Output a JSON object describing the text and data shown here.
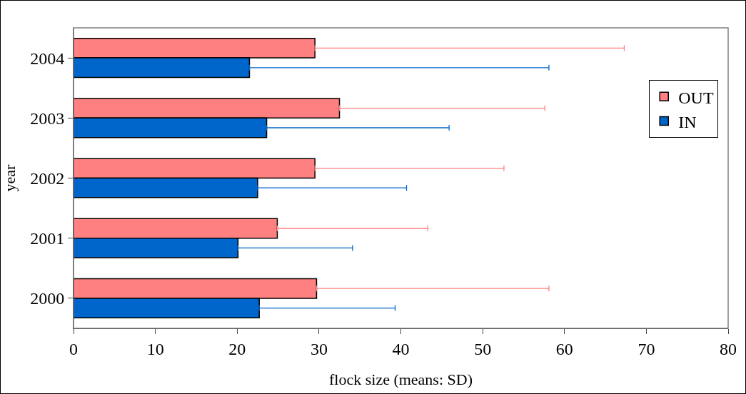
{
  "chart_data": {
    "type": "bar",
    "orientation": "horizontal",
    "xlabel": "flock size (means: SD)",
    "ylabel": "year",
    "categories": [
      "2004",
      "2003",
      "2002",
      "2001",
      "2000"
    ],
    "series": [
      {
        "name": "OUT",
        "color": "#ff8080",
        "values": [
          29.5,
          32.5,
          29.5,
          24.9,
          29.7
        ],
        "errors": [
          [
            29.5,
            67.3
          ],
          [
            32.5,
            57.6
          ],
          [
            29.5,
            52.6
          ],
          [
            24.9,
            43.3
          ],
          [
            29.7,
            58.1
          ]
        ]
      },
      {
        "name": "IN",
        "color": "#0066cc",
        "values": [
          21.5,
          23.6,
          22.5,
          20.1,
          22.7
        ],
        "errors": [
          [
            21.5,
            58.1
          ],
          [
            23.6,
            45.9
          ],
          [
            22.5,
            40.7
          ],
          [
            20.1,
            34.1
          ],
          [
            22.7,
            39.3
          ]
        ]
      }
    ],
    "xlim": [
      0,
      80
    ],
    "xticks": [
      0,
      10,
      20,
      30,
      40,
      50,
      60,
      70,
      80
    ],
    "grid": false,
    "legend": "right"
  }
}
